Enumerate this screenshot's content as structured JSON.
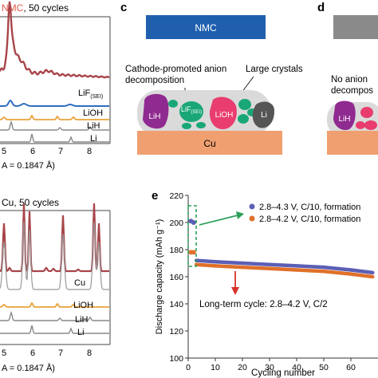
{
  "panel_top_left": {
    "title_accent": "NMC",
    "title_rest": ", 50 cycles",
    "title_accent_color": "#e05a4a",
    "labels": {
      "lif": "LiF",
      "lif_sub": "(SEI)",
      "lioh": "LiOH",
      "lih": "LiH",
      "li": "Li"
    },
    "tick_labels": [
      "5",
      "6",
      "7",
      "8"
    ],
    "xlabel": "A = 0.1847 Å)"
  },
  "panel_bottom_left": {
    "title": "Cu, 50 cycles",
    "labels": {
      "cu": "Cu",
      "lioh": "LiOH",
      "lih": "LiH",
      "li": "Li"
    },
    "tick_labels": [
      "5",
      "6",
      "7",
      "8"
    ],
    "xlabel": "A = 0.1847 Å)"
  },
  "panel_c": {
    "letter": "c",
    "banner": "NMC",
    "banner_color": "#1f5fae",
    "annotation_left_line1": "Cathode-promoted anion",
    "annotation_left_line2": "decomposition",
    "annotation_right": "Large crystals",
    "particles": {
      "lih": "LiH",
      "lif": "LiF",
      "lif_sub": "(SEI)",
      "lioh": "LiOH",
      "li": "Li"
    },
    "substrate": "Cu",
    "substrate_color": "#f0a070"
  },
  "panel_d": {
    "letter": "d",
    "annotation_line1": "No anion",
    "annotation_line2": "decompos",
    "particle_lih": "LiH"
  },
  "panel_e": {
    "letter": "e",
    "legend": [
      {
        "label": "2.8–4.3 V, C/10, formation",
        "color": "#5b5fb5"
      },
      {
        "label": "2.8–4.2 V, C/10, formation",
        "color": "#e0702a"
      }
    ],
    "long_term_label": "Long-term cycle: 2.8–4.2 V, C/2",
    "colors": {
      "green": "#2da05a",
      "red": "#d8322a"
    }
  },
  "chart_data": [
    {
      "type": "line",
      "x": [
        "5",
        "6",
        "7",
        "8"
      ],
      "series": [
        {
          "name": "NMC, 50 cycles"
        },
        {
          "name": "LiF(SEI)"
        },
        {
          "name": "LiOH"
        },
        {
          "name": "LiH"
        },
        {
          "name": "Li"
        }
      ],
      "xlabel": "A = 0.1847 Å)"
    },
    {
      "type": "line",
      "x": [
        "5",
        "6",
        "7",
        "8"
      ],
      "series": [
        {
          "name": "Cu, 50 cycles"
        },
        {
          "name": "Cu"
        },
        {
          "name": "LiOH"
        },
        {
          "name": "LiH"
        },
        {
          "name": "Li"
        }
      ],
      "xlabel": "A = 0.1847 Å)"
    },
    {
      "type": "scatter",
      "xlabel": "Cycling number",
      "ylabel": "Discharge capacity (mAh g⁻¹)",
      "xlim": [
        0,
        70
      ],
      "ylim": [
        100,
        220
      ],
      "xticks": [
        0,
        10,
        20,
        30,
        40,
        50,
        60
      ],
      "yticks": [
        100,
        120,
        140,
        160,
        180,
        200,
        220
      ],
      "grid": false,
      "legend_position": "top-right",
      "series": [
        {
          "name": "2.8–4.3 V, C/10, formation",
          "color": "#5b5fb5",
          "x": [
            1,
            2,
            3,
            10,
            20,
            30,
            40,
            50,
            60,
            68
          ],
          "y": [
            201,
            200,
            172,
            171,
            170,
            169,
            168,
            167,
            165,
            163
          ]
        },
        {
          "name": "2.8–4.2 V, C/10, formation",
          "color": "#e0702a",
          "x": [
            1,
            2,
            3,
            10,
            20,
            30,
            40,
            50,
            60,
            68
          ],
          "y": [
            178,
            178,
            169,
            168,
            167,
            166,
            165,
            164,
            162,
            160
          ]
        }
      ]
    }
  ]
}
